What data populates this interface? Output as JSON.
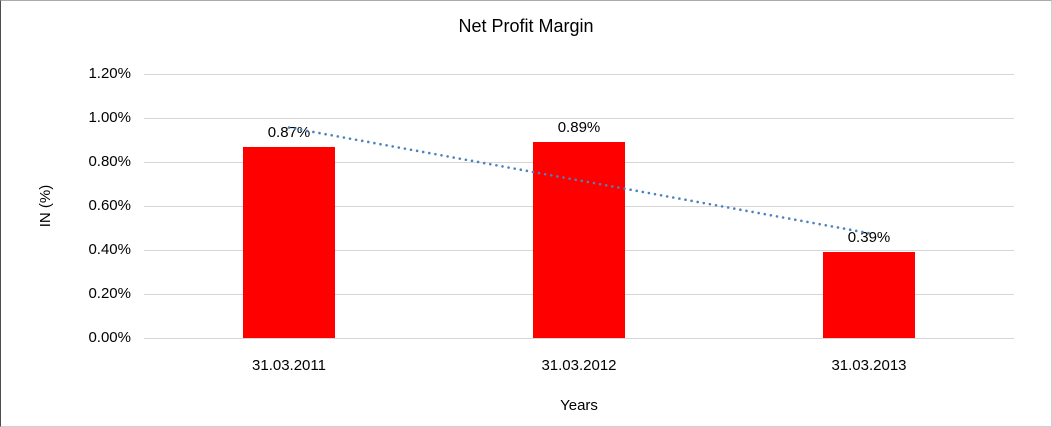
{
  "chart_data": {
    "type": "bar",
    "title": "Net Profit Margin",
    "xlabel": "Years",
    "ylabel": "IN (%)",
    "categories": [
      "31.03.2011",
      "31.03.2012",
      "31.03.2013"
    ],
    "values": [
      0.87,
      0.89,
      0.39
    ],
    "data_labels": [
      "0.87%",
      "0.89%",
      "0.39%"
    ],
    "y_ticks": [
      {
        "value": 0.0,
        "label": "0.00%"
      },
      {
        "value": 0.2,
        "label": "0.20%"
      },
      {
        "value": 0.4,
        "label": "0.40%"
      },
      {
        "value": 0.6,
        "label": "0.60%"
      },
      {
        "value": 0.8,
        "label": "0.80%"
      },
      {
        "value": 1.0,
        "label": "1.00%"
      },
      {
        "value": 1.2,
        "label": "1.20%"
      }
    ],
    "ylim": [
      0,
      1.2
    ],
    "grid": true,
    "legend": false,
    "trendline": {
      "type": "linear",
      "style": "dotted"
    },
    "colors": {
      "bar": "#ff0000",
      "trendline": "#4e81bd",
      "gridline": "#d6d6d6",
      "text": "#000000"
    }
  }
}
